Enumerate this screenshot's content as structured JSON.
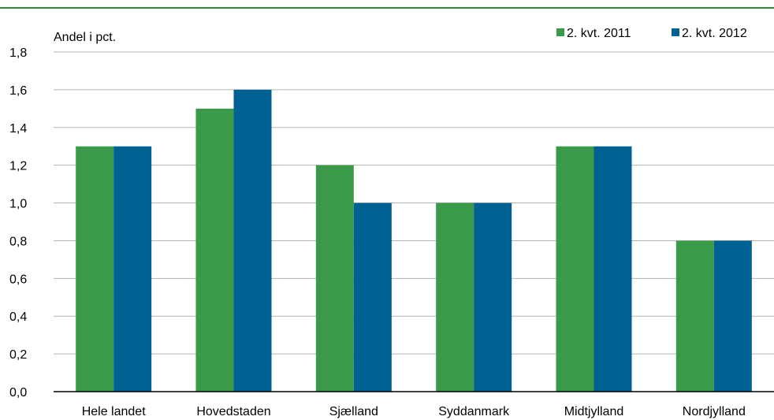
{
  "chart_data": {
    "type": "bar",
    "ylabel": "Andel i pct.",
    "categories": [
      "Hele landet",
      "Hovedstaden",
      "Sjælland",
      "Syddanmark",
      "Midtjylland",
      "Nordjylland"
    ],
    "series": [
      {
        "name": "2. kvt. 2011",
        "color": "#3a9a4a",
        "values": [
          1.3,
          1.5,
          1.2,
          1.0,
          1.3,
          0.8
        ]
      },
      {
        "name": "2. kvt. 2012",
        "color": "#006193",
        "values": [
          1.3,
          1.6,
          1.0,
          1.0,
          1.3,
          0.8
        ]
      }
    ],
    "ylim": [
      0,
      1.8
    ],
    "yticks": [
      "0,0",
      "0,2",
      "0,4",
      "0,6",
      "0,8",
      "1,0",
      "1,2",
      "1,4",
      "1,6",
      "1,8"
    ],
    "grid": true,
    "legend_position": "top-right"
  },
  "colors": {
    "header_rule": "#2e8b3e",
    "grid": "#b3b3b3",
    "axis": "#000000"
  }
}
